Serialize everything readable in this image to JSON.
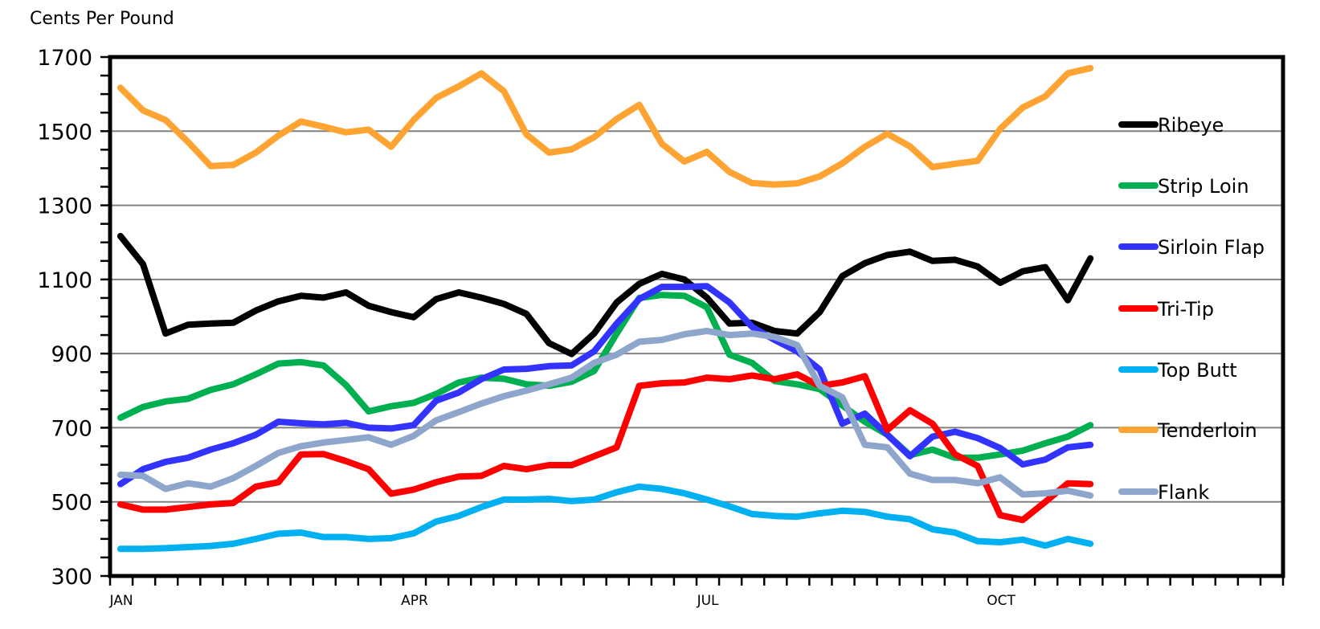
{
  "chart_data": {
    "type": "line",
    "title": "",
    "ylabel": "Cents Per Pound",
    "xlabel": "",
    "ylim": [
      300,
      1700
    ],
    "yticks": [
      300,
      500,
      700,
      900,
      1100,
      1300,
      1500,
      1700
    ],
    "y_minor_step": 50,
    "xlim_weeks": [
      0,
      52
    ],
    "x_tick_labels": [
      {
        "label": "JAN",
        "week": 0
      },
      {
        "label": "APR",
        "week": 13
      },
      {
        "label": "JUL",
        "week": 26
      },
      {
        "label": "OCT",
        "week": 39
      }
    ],
    "grid": "horizontal major",
    "legend_placement": "right",
    "series": [
      {
        "name": "Ribeye",
        "color": "#000000",
        "values": [
          1217,
          1141,
          954,
          978,
          981,
          983,
          1016,
          1041,
          1056,
          1051,
          1065,
          1029,
          1012,
          998,
          1047,
          1065,
          1051,
          1034,
          1007,
          928,
          899,
          954,
          1038,
          1088,
          1115,
          1100,
          1051,
          981,
          983,
          961,
          954,
          1012,
          1109,
          1144,
          1166,
          1175,
          1150,
          1153,
          1135,
          1091,
          1122,
          1133,
          1044,
          1157
        ]
      },
      {
        "name": "Strip Loin",
        "color": "#00b050",
        "values": [
          727,
          756,
          771,
          778,
          802,
          817,
          844,
          873,
          877,
          868,
          815,
          744,
          758,
          767,
          791,
          822,
          835,
          832,
          817,
          813,
          824,
          853,
          954,
          1050,
          1058,
          1056,
          1025,
          897,
          875,
          826,
          817,
          804,
          760,
          716,
          681,
          626,
          641,
          619,
          619,
          628,
          638,
          658,
          676,
          707
        ]
      },
      {
        "name": "Sirloin Flap",
        "color": "#3333ff",
        "values": [
          548,
          588,
          608,
          619,
          641,
          658,
          681,
          716,
          712,
          709,
          713,
          700,
          698,
          707,
          773,
          795,
          831,
          857,
          859,
          866,
          868,
          906,
          981,
          1047,
          1080,
          1080,
          1082,
          1038,
          972,
          937,
          906,
          857,
          711,
          738,
          681,
          623,
          676,
          689,
          672,
          645,
          601,
          614,
          647,
          654
        ]
      },
      {
        "name": "Tri-Tip",
        "color": "#ff0000",
        "values": [
          493,
          479,
          479,
          486,
          493,
          497,
          541,
          553,
          628,
          629,
          610,
          588,
          522,
          533,
          553,
          568,
          570,
          597,
          588,
          599,
          599,
          623,
          647,
          813,
          820,
          822,
          835,
          831,
          841,
          831,
          844,
          813,
          822,
          839,
          694,
          747,
          711,
          628,
          597,
          464,
          451,
          500,
          550,
          548
        ]
      },
      {
        "name": "Top Butt",
        "color": "#00b0f0",
        "values": [
          373,
          373,
          375,
          378,
          381,
          387,
          400,
          414,
          417,
          405,
          405,
          400,
          402,
          415,
          447,
          462,
          486,
          506,
          506,
          508,
          502,
          506,
          526,
          541,
          535,
          523,
          506,
          488,
          467,
          462,
          460,
          469,
          476,
          473,
          460,
          453,
          426,
          417,
          394,
          391,
          398,
          382,
          400,
          387
        ]
      },
      {
        "name": "Tenderloin",
        "color": "#ffa333",
        "values": [
          1617,
          1556,
          1530,
          1471,
          1406,
          1409,
          1442,
          1488,
          1526,
          1512,
          1497,
          1504,
          1458,
          1530,
          1590,
          1621,
          1656,
          1608,
          1491,
          1442,
          1451,
          1484,
          1533,
          1571,
          1466,
          1418,
          1444,
          1390,
          1360,
          1356,
          1359,
          1378,
          1413,
          1458,
          1493,
          1459,
          1403,
          1412,
          1420,
          1506,
          1564,
          1594,
          1656,
          1670
        ]
      },
      {
        "name": "Flank",
        "color": "#8ea5cc",
        "values": [
          573,
          570,
          535,
          550,
          541,
          564,
          597,
          632,
          650,
          660,
          667,
          674,
          654,
          678,
          720,
          742,
          765,
          785,
          800,
          817,
          835,
          875,
          897,
          932,
          937,
          952,
          961,
          950,
          954,
          945,
          923,
          813,
          782,
          654,
          647,
          576,
          559,
          559,
          550,
          566,
          520,
          523,
          530,
          517
        ]
      }
    ]
  }
}
